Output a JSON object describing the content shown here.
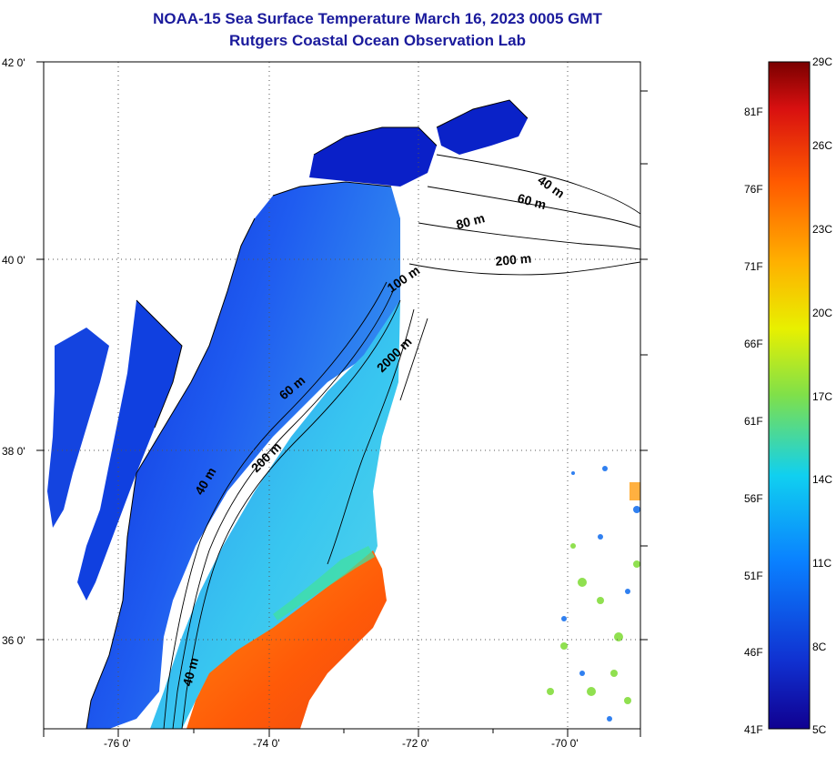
{
  "header": {
    "title": "NOAA-15 Sea Surface Temperature March 16, 2023 0005 GMT",
    "subtitle": "Rutgers Coastal Ocean Observation Lab"
  },
  "map": {
    "lat_labels": [
      "42 0'",
      "40 0'",
      "38 0'",
      "36 0'"
    ],
    "lon_labels": [
      "-76 0'",
      "-74 0'",
      "-72 0'",
      "-70 0'"
    ],
    "contour_labels": [
      "40 m",
      "60 m",
      "80 m",
      "200 m",
      "100 m",
      "2000 m",
      "60 m",
      "200 m",
      "40 m",
      "40 m"
    ]
  },
  "colorbar": {
    "fahrenheit_labels": [
      "81F",
      "76F",
      "71F",
      "66F",
      "61F",
      "56F",
      "51F",
      "46F",
      "41F"
    ],
    "celsius_labels": [
      "29C",
      "26C",
      "23C",
      "20C",
      "17C",
      "14C",
      "11C",
      "8C",
      "5C"
    ],
    "colors": [
      "#7a0000",
      "#d81010",
      "#ff5a00",
      "#ffb000",
      "#e8f000",
      "#7fe04a",
      "#10e0e0",
      "#0a80ff",
      "#1030d0",
      "#100090"
    ]
  },
  "colors": {
    "title": "#1a1a9c",
    "land": "#ffffff",
    "cold_shelf": "#1440e0",
    "warm_gulfstream": "#ff6a10"
  }
}
